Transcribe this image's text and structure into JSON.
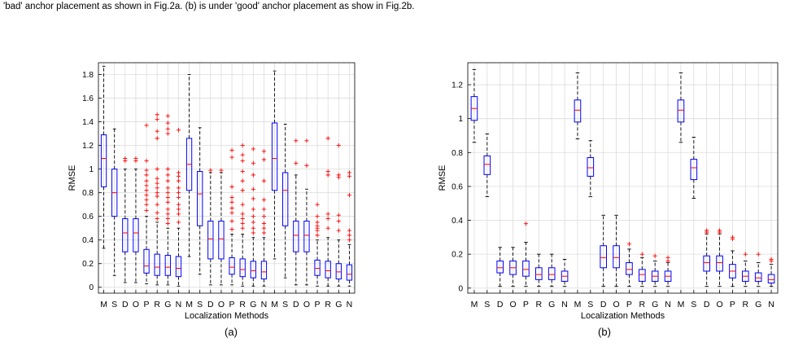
{
  "caption_fragment": "'bad' anchor placement as shown in Fig.2a. (b) is under 'good' anchor placement as show in Fig.2b.",
  "colors": {
    "box": "#0000ff",
    "median": "#ff0000",
    "outlier": "#ff0000",
    "whisker": "#000000",
    "grid": "#dcdcdc"
  },
  "chart_data": [
    {
      "type": "boxplot",
      "panel_label": "(a)",
      "xlabel": "Localization Methods",
      "ylabel": "RMSE",
      "ylim": [
        -0.05,
        1.9
      ],
      "yticks": [
        0,
        0.2,
        0.4,
        0.6,
        0.8,
        1,
        1.2,
        1.4,
        1.6,
        1.8
      ],
      "ytick_labels": [
        "0",
        "0.2",
        "0.4",
        "0.6",
        "0.8",
        "1",
        "1.2",
        "1.4",
        "1.6",
        "1.8"
      ],
      "grid": true,
      "categories": [
        "M",
        "S",
        "D",
        "O",
        "P",
        "R",
        "G",
        "N",
        "M",
        "S",
        "D",
        "O",
        "P",
        "R",
        "G",
        "N",
        "M",
        "S",
        "D",
        "O",
        "P",
        "R",
        "G",
        "N"
      ],
      "boxes": [
        {
          "whislo": 0.33,
          "q1": 0.85,
          "med": 1.09,
          "q3": 1.29,
          "whishi": 1.87,
          "fliers": []
        },
        {
          "whislo": 0.1,
          "q1": 0.6,
          "med": 0.8,
          "q3": 1.0,
          "whishi": 1.34,
          "fliers": []
        },
        {
          "whislo": 0.04,
          "q1": 0.3,
          "med": 0.46,
          "q3": 0.58,
          "whishi": 1.0,
          "fliers": [
            1.07,
            1.09
          ]
        },
        {
          "whislo": 0.04,
          "q1": 0.3,
          "med": 0.46,
          "q3": 0.58,
          "whishi": 1.0,
          "fliers": [
            1.07,
            1.09
          ]
        },
        {
          "whislo": 0.03,
          "q1": 0.12,
          "med": 0.18,
          "q3": 0.32,
          "whishi": 0.6,
          "fliers": [
            0.65,
            0.7,
            0.74,
            0.78,
            0.82,
            0.86,
            0.9,
            0.95,
            0.99,
            1.07,
            1.37
          ]
        },
        {
          "whislo": 0.02,
          "q1": 0.1,
          "med": 0.17,
          "q3": 0.28,
          "whishi": 0.55,
          "fliers": [
            0.58,
            0.63,
            0.7,
            0.77,
            0.8,
            0.84,
            0.88,
            0.92,
            1.0,
            1.26,
            1.32,
            1.42,
            1.46
          ]
        },
        {
          "whislo": 0.02,
          "q1": 0.1,
          "med": 0.17,
          "q3": 0.27,
          "whishi": 0.5,
          "fliers": [
            0.54,
            0.58,
            0.62,
            0.66,
            0.72,
            0.76,
            0.8,
            0.84,
            0.9,
            0.95,
            1.0,
            1.3,
            1.34,
            1.39,
            1.45
          ]
        },
        {
          "whislo": 0.01,
          "q1": 0.09,
          "med": 0.16,
          "q3": 0.26,
          "whishi": 0.5,
          "fliers": [
            0.55,
            0.62,
            0.66,
            0.7,
            0.76,
            0.8,
            0.84,
            0.9,
            0.94,
            0.97,
            1.33
          ]
        },
        {
          "whislo": 0.26,
          "q1": 0.82,
          "med": 1.04,
          "q3": 1.26,
          "whishi": 1.8,
          "fliers": []
        },
        {
          "whislo": 0.11,
          "q1": 0.52,
          "med": 0.79,
          "q3": 0.98,
          "whishi": 1.35,
          "fliers": []
        },
        {
          "whislo": 0.02,
          "q1": 0.24,
          "med": 0.41,
          "q3": 0.56,
          "whishi": 0.97,
          "fliers": [
            0.99
          ]
        },
        {
          "whislo": 0.02,
          "q1": 0.24,
          "med": 0.41,
          "q3": 0.56,
          "whishi": 0.97,
          "fliers": [
            0.99
          ]
        },
        {
          "whislo": 0.02,
          "q1": 0.11,
          "med": 0.17,
          "q3": 0.25,
          "whishi": 0.45,
          "fliers": [
            0.49,
            0.56,
            0.63,
            0.67,
            0.72,
            0.76,
            0.85,
            1.1,
            1.16
          ]
        },
        {
          "whislo": 0.01,
          "q1": 0.09,
          "med": 0.15,
          "q3": 0.24,
          "whishi": 0.45,
          "fliers": [
            0.5,
            0.54,
            0.58,
            0.62,
            0.7,
            0.82,
            0.9,
            0.98,
            1.07,
            1.12,
            1.2
          ]
        },
        {
          "whislo": 0.01,
          "q1": 0.08,
          "med": 0.14,
          "q3": 0.22,
          "whishi": 0.42,
          "fliers": [
            0.46,
            0.5,
            0.55,
            0.6,
            0.66,
            0.75,
            0.83,
            0.95,
            1.05,
            1.17
          ]
        },
        {
          "whislo": 0.01,
          "q1": 0.07,
          "med": 0.13,
          "q3": 0.22,
          "whishi": 0.42,
          "fliers": [
            0.46,
            0.5,
            0.54,
            0.6,
            0.66,
            0.74,
            0.9,
            1.08,
            1.15
          ]
        },
        {
          "whislo": 0.24,
          "q1": 0.82,
          "med": 1.09,
          "q3": 1.39,
          "whishi": 1.83,
          "fliers": []
        },
        {
          "whislo": 0.08,
          "q1": 0.52,
          "med": 0.82,
          "q3": 0.97,
          "whishi": 1.38,
          "fliers": []
        },
        {
          "whislo": 0.02,
          "q1": 0.3,
          "med": 0.44,
          "q3": 0.56,
          "whishi": 0.95,
          "fliers": [
            1.05,
            1.24
          ]
        },
        {
          "whislo": 0.02,
          "q1": 0.3,
          "med": 0.44,
          "q3": 0.56,
          "whishi": 0.83,
          "fliers": [
            1.03,
            1.24
          ]
        },
        {
          "whislo": 0.01,
          "q1": 0.1,
          "med": 0.16,
          "q3": 0.23,
          "whishi": 0.4,
          "fliers": [
            0.44,
            0.48,
            0.5,
            0.52,
            0.55,
            0.6,
            0.7
          ]
        },
        {
          "whislo": 0.01,
          "q1": 0.08,
          "med": 0.14,
          "q3": 0.22,
          "whishi": 0.42,
          "fliers": [
            0.5,
            0.58,
            0.62,
            0.95,
            0.98,
            1.26
          ]
        },
        {
          "whislo": 0.01,
          "q1": 0.07,
          "med": 0.13,
          "q3": 0.2,
          "whishi": 0.4,
          "fliers": [
            0.48,
            0.56,
            0.61,
            0.93,
            0.95,
            1.2
          ]
        },
        {
          "whislo": 0.01,
          "q1": 0.06,
          "med": 0.11,
          "q3": 0.19,
          "whishi": 0.36,
          "fliers": [
            0.4,
            0.44,
            0.48,
            0.78,
            0.94,
            0.97
          ]
        }
      ]
    },
    {
      "type": "boxplot",
      "panel_label": "(b)",
      "xlabel": "Localization Methods",
      "ylabel": "RMSE",
      "ylim": [
        -0.03,
        1.33
      ],
      "yticks": [
        0,
        0.2,
        0.4,
        0.6,
        0.8,
        1,
        1.2
      ],
      "ytick_labels": [
        "0",
        "0.2",
        "0.4",
        "0.6",
        "0.8",
        "1",
        "1.2"
      ],
      "grid": true,
      "categories": [
        "M",
        "S",
        "D",
        "O",
        "P",
        "R",
        "G",
        "N",
        "M",
        "S",
        "D",
        "O",
        "P",
        "R",
        "G",
        "N",
        "M",
        "S",
        "D",
        "O",
        "P",
        "R",
        "G",
        "N"
      ],
      "boxes": [
        {
          "whislo": 0.86,
          "q1": 0.99,
          "med": 1.06,
          "q3": 1.13,
          "whishi": 1.29,
          "fliers": []
        },
        {
          "whislo": 0.54,
          "q1": 0.67,
          "med": 0.73,
          "q3": 0.78,
          "whishi": 0.91,
          "fliers": []
        },
        {
          "whislo": 0.01,
          "q1": 0.09,
          "med": 0.12,
          "q3": 0.16,
          "whishi": 0.24,
          "fliers": []
        },
        {
          "whislo": 0.01,
          "q1": 0.08,
          "med": 0.12,
          "q3": 0.16,
          "whishi": 0.24,
          "fliers": []
        },
        {
          "whislo": 0.01,
          "q1": 0.07,
          "med": 0.11,
          "q3": 0.16,
          "whishi": 0.27,
          "fliers": [
            0.38
          ]
        },
        {
          "whislo": 0.01,
          "q1": 0.05,
          "med": 0.08,
          "q3": 0.12,
          "whishi": 0.2,
          "fliers": []
        },
        {
          "whislo": 0.01,
          "q1": 0.05,
          "med": 0.08,
          "q3": 0.12,
          "whishi": 0.2,
          "fliers": []
        },
        {
          "whislo": 0.01,
          "q1": 0.04,
          "med": 0.07,
          "q3": 0.1,
          "whishi": 0.17,
          "fliers": []
        },
        {
          "whislo": 0.88,
          "q1": 0.98,
          "med": 1.05,
          "q3": 1.11,
          "whishi": 1.27,
          "fliers": []
        },
        {
          "whislo": 0.54,
          "q1": 0.66,
          "med": 0.71,
          "q3": 0.77,
          "whishi": 0.87,
          "fliers": []
        },
        {
          "whislo": 0.01,
          "q1": 0.12,
          "med": 0.18,
          "q3": 0.25,
          "whishi": 0.43,
          "fliers": []
        },
        {
          "whislo": 0.01,
          "q1": 0.12,
          "med": 0.18,
          "q3": 0.25,
          "whishi": 0.43,
          "fliers": []
        },
        {
          "whislo": 0.01,
          "q1": 0.08,
          "med": 0.11,
          "q3": 0.15,
          "whishi": 0.23,
          "fliers": [
            0.26
          ]
        },
        {
          "whislo": 0.01,
          "q1": 0.04,
          "med": 0.08,
          "q3": 0.11,
          "whishi": 0.18,
          "fliers": [
            0.2
          ]
        },
        {
          "whislo": 0.01,
          "q1": 0.04,
          "med": 0.07,
          "q3": 0.1,
          "whishi": 0.16,
          "fliers": [
            0.19
          ]
        },
        {
          "whislo": 0.01,
          "q1": 0.04,
          "med": 0.07,
          "q3": 0.1,
          "whishi": 0.15,
          "fliers": [
            0.16,
            0.18
          ]
        },
        {
          "whislo": 0.86,
          "q1": 0.98,
          "med": 1.05,
          "q3": 1.11,
          "whishi": 1.27,
          "fliers": []
        },
        {
          "whislo": 0.53,
          "q1": 0.64,
          "med": 0.71,
          "q3": 0.76,
          "whishi": 0.89,
          "fliers": []
        },
        {
          "whislo": 0.01,
          "q1": 0.1,
          "med": 0.15,
          "q3": 0.19,
          "whishi": 0.32,
          "fliers": [
            0.33,
            0.34
          ]
        },
        {
          "whislo": 0.01,
          "q1": 0.1,
          "med": 0.15,
          "q3": 0.19,
          "whishi": 0.32,
          "fliers": [
            0.33,
            0.34
          ]
        },
        {
          "whislo": 0.01,
          "q1": 0.06,
          "med": 0.1,
          "q3": 0.14,
          "whishi": 0.22,
          "fliers": [
            0.29,
            0.3
          ]
        },
        {
          "whislo": 0.01,
          "q1": 0.04,
          "med": 0.07,
          "q3": 0.1,
          "whishi": 0.16,
          "fliers": [
            0.2
          ]
        },
        {
          "whislo": 0.01,
          "q1": 0.04,
          "med": 0.06,
          "q3": 0.09,
          "whishi": 0.15,
          "fliers": [
            0.2
          ]
        },
        {
          "whislo": 0.01,
          "q1": 0.03,
          "med": 0.05,
          "q3": 0.08,
          "whishi": 0.14,
          "fliers": [
            0.16,
            0.17
          ]
        }
      ]
    }
  ]
}
